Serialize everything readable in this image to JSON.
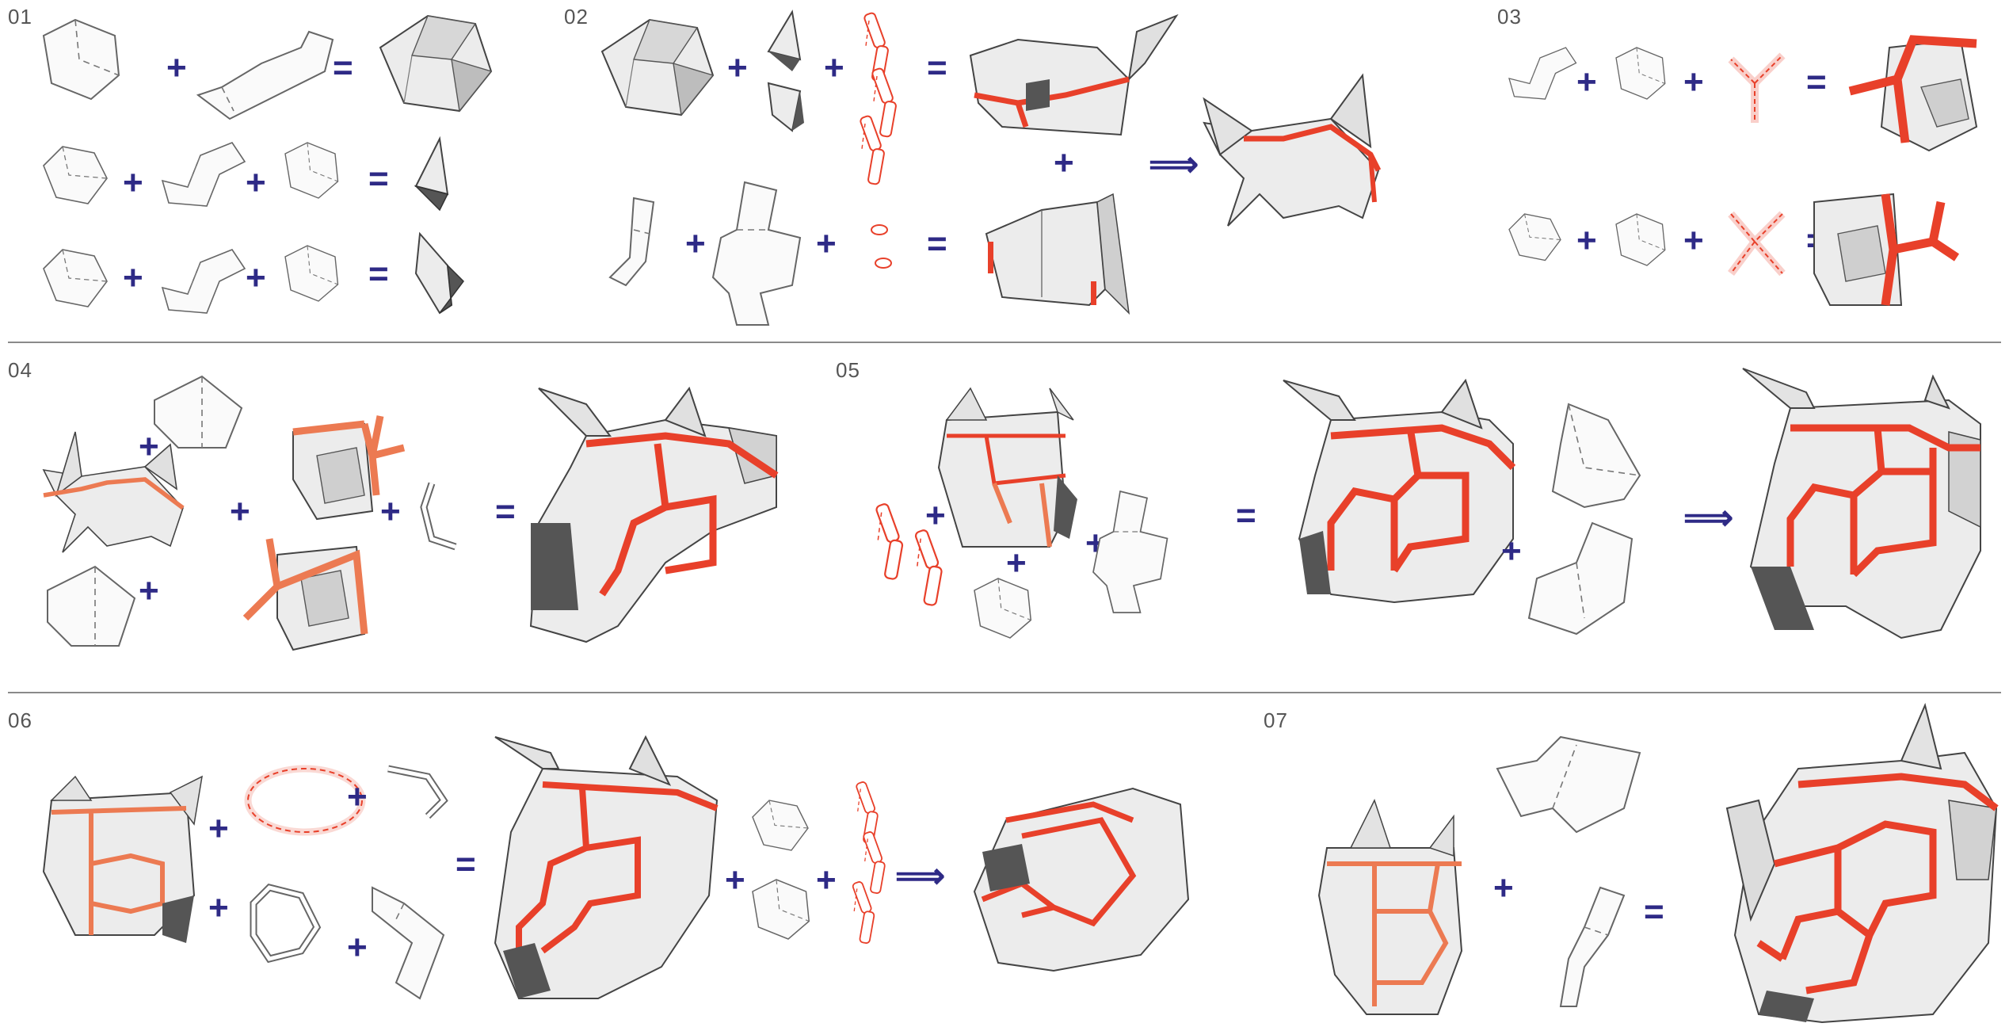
{
  "figure": {
    "steps": [
      {
        "id": "step-01",
        "label": "01"
      },
      {
        "id": "step-02",
        "label": "02"
      },
      {
        "id": "step-03",
        "label": "03"
      },
      {
        "id": "step-04",
        "label": "04"
      },
      {
        "id": "step-05",
        "label": "05"
      },
      {
        "id": "step-06",
        "label": "06"
      },
      {
        "id": "step-07",
        "label": "07"
      }
    ],
    "symbols": {
      "plus": "+",
      "equals": "=",
      "implies": "⟹"
    },
    "colors": {
      "operator": "#2e2a86",
      "accent_red": "#e8402a",
      "accent_orange": "#ec7a52",
      "outline": "#555555",
      "paper": "#f2f2f2",
      "shade": "#c9c9c9",
      "dark": "#6e6e6e",
      "divider": "#8a8a8a"
    }
  }
}
